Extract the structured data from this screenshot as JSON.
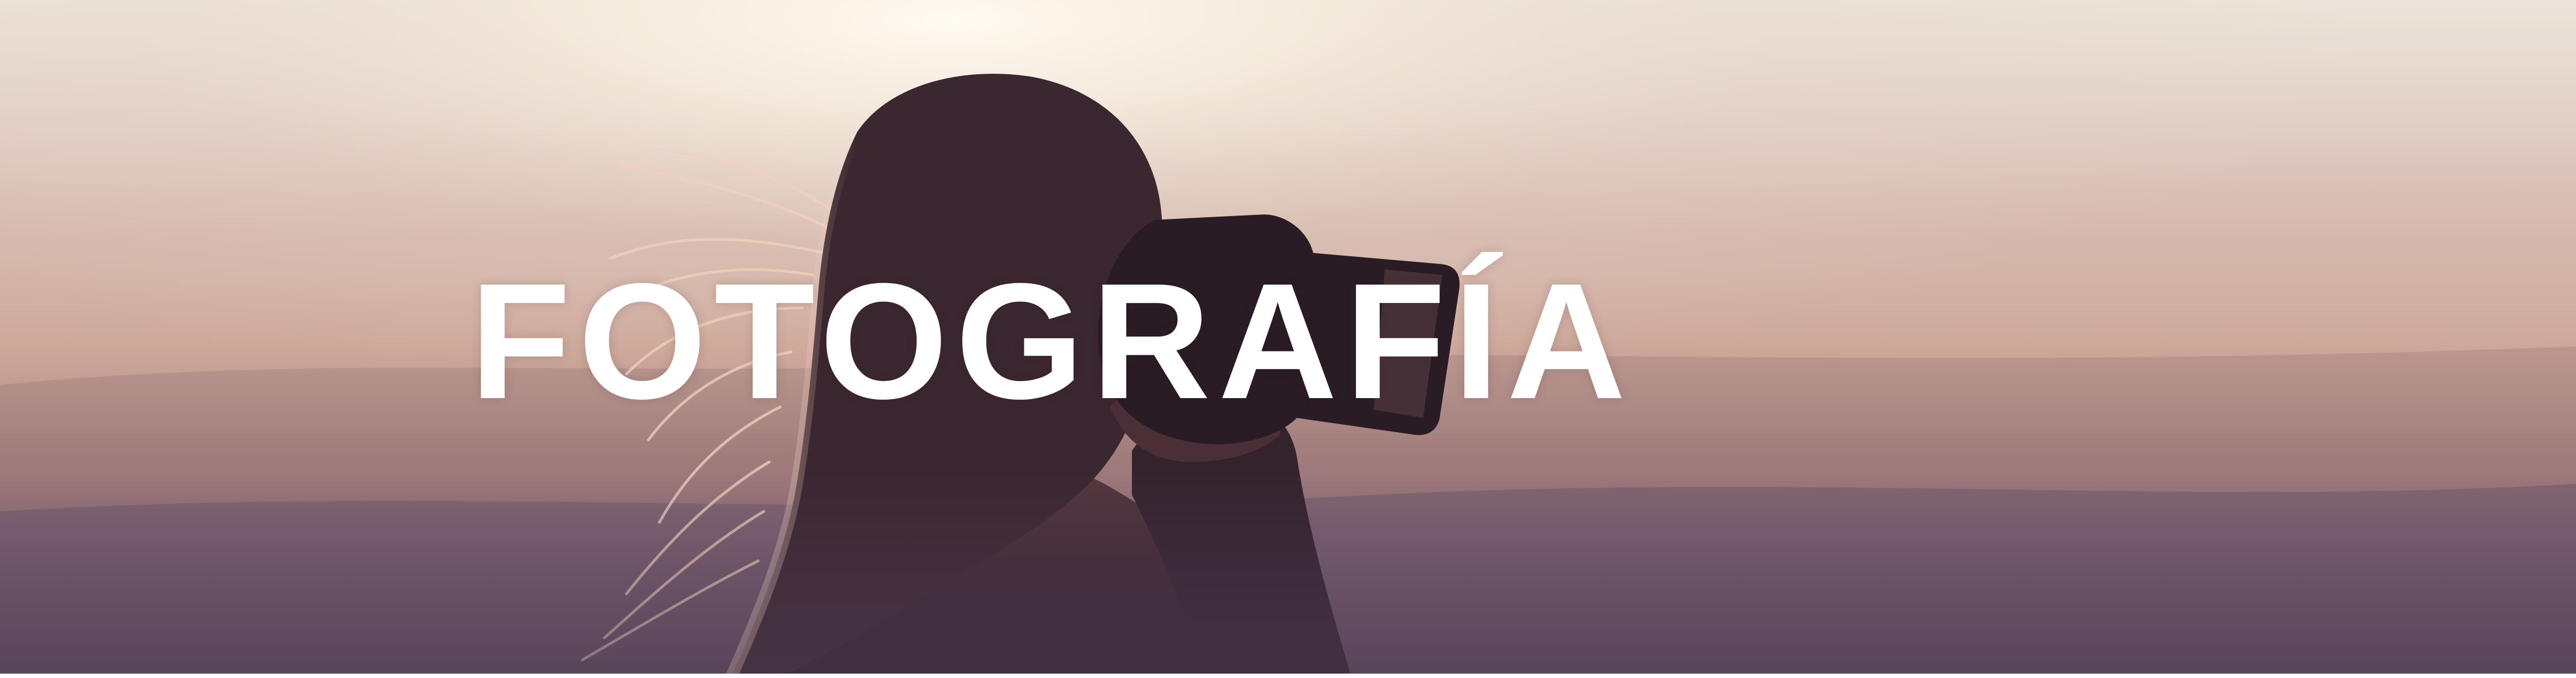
{
  "banner": {
    "title": "FOTOGRAFÍA"
  },
  "photo": {
    "subject": "photographer-silhouette",
    "colors": {
      "sky_top": "#ece4da",
      "sky_mid": "#c9a396",
      "sky_bottom": "#5e4a60",
      "sun_glow": "#fff8ea",
      "silhouette": "#3a2631",
      "title_text": "#ffffff"
    }
  }
}
